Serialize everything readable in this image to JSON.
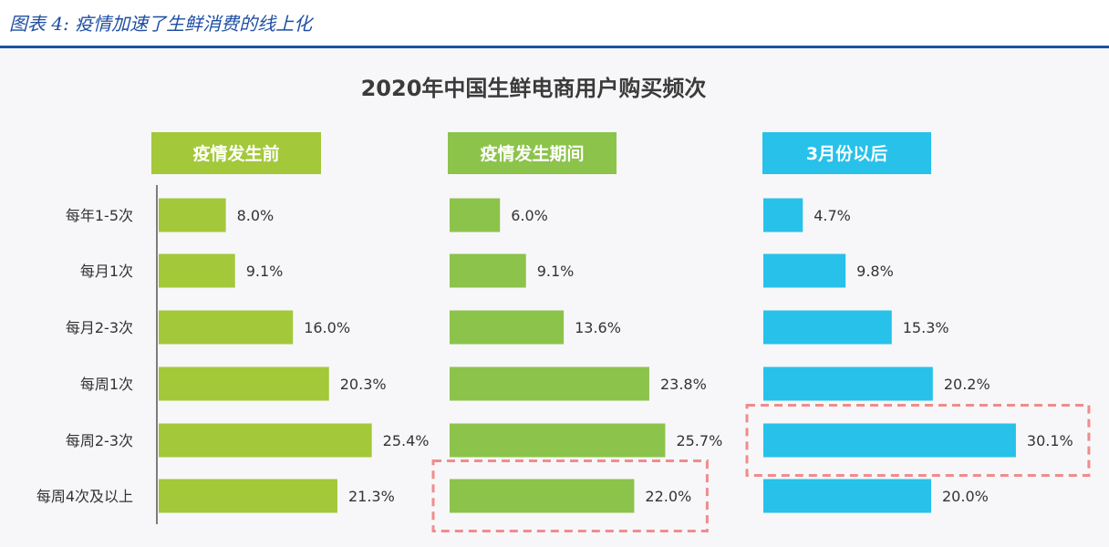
{
  "figure_caption": "图表 4: 疫情加速了生鲜消费的线上化",
  "colors": {
    "caption_blue": "#1e4fa3",
    "header_green": "#a3c839",
    "bar_green_1": "#a3c839",
    "bar_green_2": "#8cc34b",
    "bar_blue": "#27c1ea",
    "highlight_dash": "#f08c8c"
  },
  "chart_data": {
    "type": "bar",
    "orientation": "horizontal",
    "title": "2020年中国生鲜电商用户购买频次",
    "categories": [
      "每年1-5次",
      "每月1次",
      "每月2-3次",
      "每周1次",
      "每周2-3次",
      "每周4次及以上"
    ],
    "unit": "%",
    "series": [
      {
        "name": "疫情发生前",
        "values": [
          8.0,
          9.1,
          16.0,
          20.3,
          25.4,
          21.3
        ],
        "labels": [
          "8.0%",
          "9.1%",
          "16.0%",
          "20.3%",
          "25.4%",
          "21.3%"
        ],
        "color": "#a3c839"
      },
      {
        "name": "疫情发生期间",
        "values": [
          6.0,
          9.1,
          13.6,
          23.8,
          25.7,
          22.0
        ],
        "labels": [
          "6.0%",
          "9.1%",
          "13.6%",
          "23.8%",
          "25.7%",
          "22.0%"
        ],
        "color": "#8cc34b",
        "highlight_category": "每周4次及以上"
      },
      {
        "name": "3月份以后",
        "values": [
          4.7,
          9.8,
          15.3,
          20.2,
          30.1,
          20.0
        ],
        "labels": [
          "4.7%",
          "9.8%",
          "15.3%",
          "20.2%",
          "30.1%",
          "20.0%"
        ],
        "color": "#27c1ea",
        "highlight_category": "每周2-3次"
      }
    ]
  }
}
